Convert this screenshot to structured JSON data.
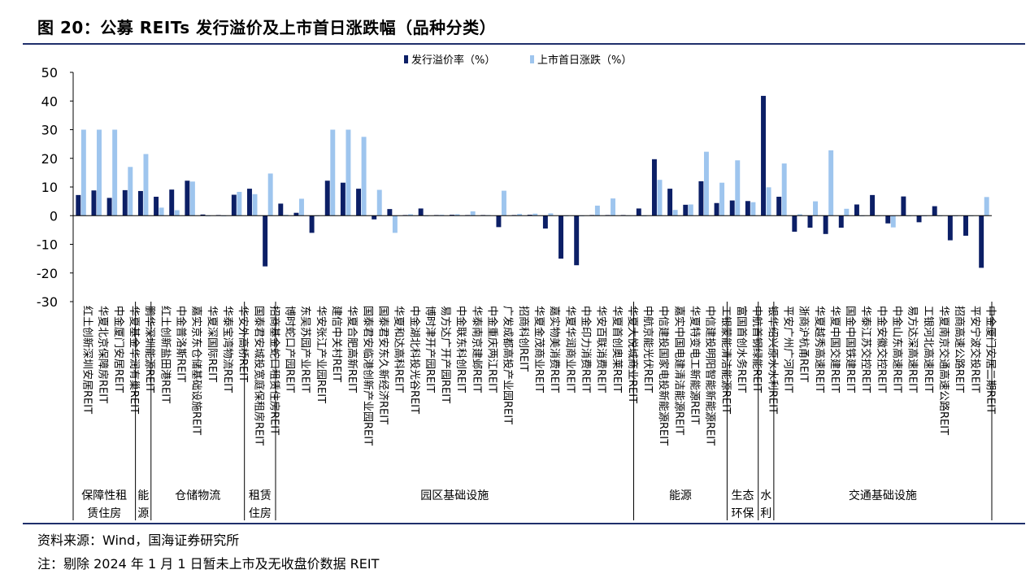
{
  "figure": {
    "title": "图 20：公募 REITs 发行溢价及上市首日涨跌幅（品种分类）",
    "source": "资料来源：Wind，国海证券研究所",
    "remark": "注：剔除 2024 年 1 月 1 日暂未上市及无收盘价数据 REIT"
  },
  "colors": {
    "premium": "#0c1f66",
    "first_day": "#9ec5ee",
    "axis": "#000000"
  },
  "chart_data": {
    "type": "bar",
    "title": "",
    "ylim": [
      -30,
      50
    ],
    "yticks": [
      50,
      40,
      30,
      20,
      10,
      0,
      -10,
      -20,
      -30
    ],
    "grid": false,
    "legend_position": "top-center",
    "series": [
      {
        "name": "发行溢价率（%）",
        "color": "#0c1f66",
        "values": [
          7.2,
          8.8,
          6.2,
          8.9,
          8.6,
          6.6,
          9.1,
          12.2,
          0.4,
          0.2,
          7.3,
          9.4,
          -17.7,
          4.2,
          1.0,
          -6.0,
          12.2,
          11.5,
          9.4,
          -1.3,
          2.3,
          0.2,
          2.5,
          0.2,
          0.3,
          0.2,
          0.2,
          -4.0,
          0.2,
          0.3,
          -4.5,
          -15.0,
          -17.3,
          0.2,
          0.2,
          0.2,
          2.5,
          19.7,
          9.4,
          3.8,
          12.0,
          4.4,
          5.3,
          5.1,
          41.8,
          6.6,
          -5.6,
          -4.2,
          -6.4,
          -4.2,
          3.9,
          7.2,
          -2.7,
          6.7,
          -2.3,
          3.3,
          -8.6,
          -7.0,
          -18.2
        ]
      },
      {
        "name": "上市首日涨跌（%）",
        "color": "#9ec5ee",
        "values": [
          30.0,
          30.0,
          30.0,
          17.0,
          21.5,
          2.8,
          1.9,
          11.9,
          0.0,
          0.0,
          8.3,
          7.5,
          14.7,
          0.3,
          5.9,
          0.0,
          30.0,
          30.0,
          27.5,
          9.0,
          -6.0,
          0.5,
          0.0,
          0.3,
          0.5,
          1.5,
          0.2,
          8.7,
          0.6,
          0.7,
          0.8,
          0.0,
          0.0,
          3.5,
          6.0,
          0.1,
          0.0,
          12.5,
          2.0,
          3.9,
          22.3,
          11.5,
          19.3,
          4.7,
          9.9,
          18.2,
          0.5,
          5.0,
          22.8,
          2.4,
          0.0,
          0.0,
          -4.1,
          0.0,
          0.0,
          0.0,
          0.0,
          0.0,
          6.5
        ]
      }
    ],
    "categories": [
      "红土创新深圳安居REIT",
      "华夏北京保障房REIT",
      "中金厦门安居REIT",
      "华夏基金华润有巢REIT",
      "鹏华深圳能源REIT",
      "红土创新盐田港REIT",
      "中金普洛斯REIT",
      "嘉实京东仓储基础设施REIT",
      "华夏深国际REIT",
      "华泰宝湾物流REIT",
      "华安外高桥REIT",
      "国泰君安城投宽庭保租房REIT",
      "招商基金蛇口租赁住房REIT",
      "博时蛇口产园REIT",
      "东吴苏园产业REIT",
      "华安张江产业园REIT",
      "建信中关村REIT",
      "华夏合肥高新REIT",
      "国泰君安临港创新产业园REIT",
      "国泰君安东久新经济REIT",
      "华夏和达高科REIT",
      "中金湖北科投光谷REIT",
      "博时津开产园REIT",
      "易方达广开产园REIT",
      "中金联东科创REIT",
      "华泰南京建邺REIT",
      "中金重庆两江REIT",
      "广发成都高投产业园REIT",
      "招商科创REIT",
      "华夏金茂商业REIT",
      "嘉实物美消费REIT",
      "华夏华润商业REIT",
      "中金印力消费REIT",
      "华安百联消费REIT",
      "华夏首创奥莱REIT",
      "华夏大悦城商业REIT",
      "中航京能光伏REIT",
      "中信建投国家电投新能源REIT",
      "嘉实中国电建清洁能源REIT",
      "华夏特变电工新能源REIT",
      "中信建投明阳智能新能源REIT",
      "工银蒙能清洁能源REIT",
      "富国首创水务REIT",
      "中航首钢绿能REIT",
      "银华绍兴原水水利REIT",
      "平安广州广河REIT",
      "浙商沪杭甬REIT",
      "华夏越秀高速REIT",
      "华夏中国交建REIT",
      "国金中国铁建REIT",
      "华泰江苏交控REIT",
      "中金安徽交控REIT",
      "中金山东高速REIT",
      "易方达深高速REIT",
      "工银河北高速REIT",
      "华夏南京交通高速公路REIT",
      "招商高速公路REIT",
      "平安宁波交投REIT",
      "中金厦门安居二期REIT"
    ],
    "groups": [
      {
        "label": [
          "保障性租",
          "赁住房"
        ],
        "count": 4
      },
      {
        "label": [
          "能",
          "源"
        ],
        "count": 1
      },
      {
        "label": [
          "仓储物流"
        ],
        "count": 6
      },
      {
        "label": [
          "租赁",
          "住房"
        ],
        "count": 2
      },
      {
        "label": [
          "园区基础设施"
        ],
        "count": 23
      },
      {
        "label": [
          "能源"
        ],
        "count": 6
      },
      {
        "label": [
          "生态",
          "环保"
        ],
        "count": 2
      },
      {
        "label": [
          "水",
          "利"
        ],
        "count": 1
      },
      {
        "label": [
          "交通基础设施"
        ],
        "count": 14
      }
    ]
  }
}
